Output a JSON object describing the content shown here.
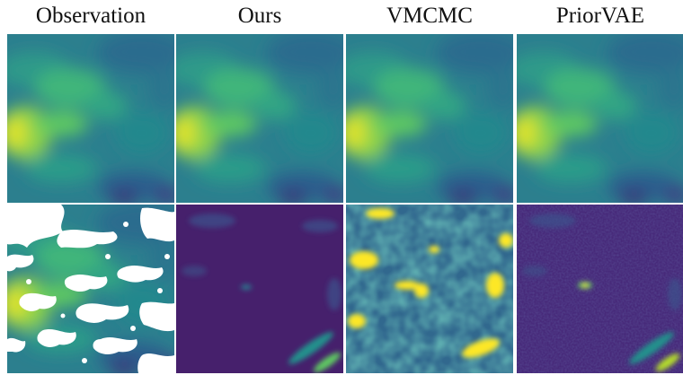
{
  "columns": [
    "Observation",
    "Ours",
    "VMCMC",
    "PriorVAE"
  ],
  "colormap": "viridis",
  "colors": {
    "viridis_dark": "#440154",
    "viridis_blue": "#3b528b",
    "viridis_teal": "#21918c",
    "viridis_green": "#5ec962",
    "viridis_yellow": "#fde725",
    "missing": "#ffffff"
  },
  "rows": [
    {
      "content": "field",
      "panels": [
        "observed-field",
        "reconstruction",
        "reconstruction",
        "reconstruction"
      ]
    },
    {
      "content": "uncertainty",
      "panels": [
        "masked-observation",
        "low-uncertainty",
        "high-noise",
        "low-uncertainty-noisy"
      ]
    }
  ]
}
